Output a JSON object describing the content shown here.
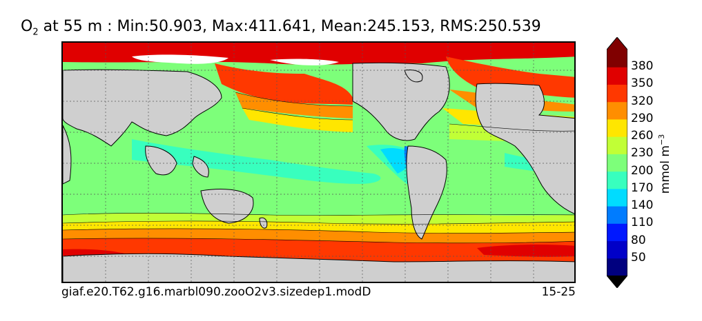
{
  "title": {
    "species": "O",
    "subscript": "2",
    "rest": " at 55 m : Min:50.903, Max:411.641, Mean:245.153, RMS:250.539"
  },
  "footer": {
    "case_name": "giaf.e20.T62.g16.marbl090.zooO2v3.sizedep1.modD",
    "years": "15-25"
  },
  "colorbar": {
    "label_prefix": "mmol m",
    "label_exponent": "−3",
    "ticks": [
      "50",
      "80",
      "110",
      "140",
      "170",
      "200",
      "230",
      "260",
      "290",
      "320",
      "350",
      "380"
    ],
    "colors": [
      "#00007f",
      "#0000c8",
      "#0018ff",
      "#007cff",
      "#00dcff",
      "#38ffbe",
      "#7dff7a",
      "#c1ff36",
      "#ffe600",
      "#ff8e00",
      "#ff3800",
      "#e00000",
      "#800000"
    ]
  },
  "map": {
    "land_color": "#cfcfcf",
    "sea_ice_color": "#ffffff"
  }
}
